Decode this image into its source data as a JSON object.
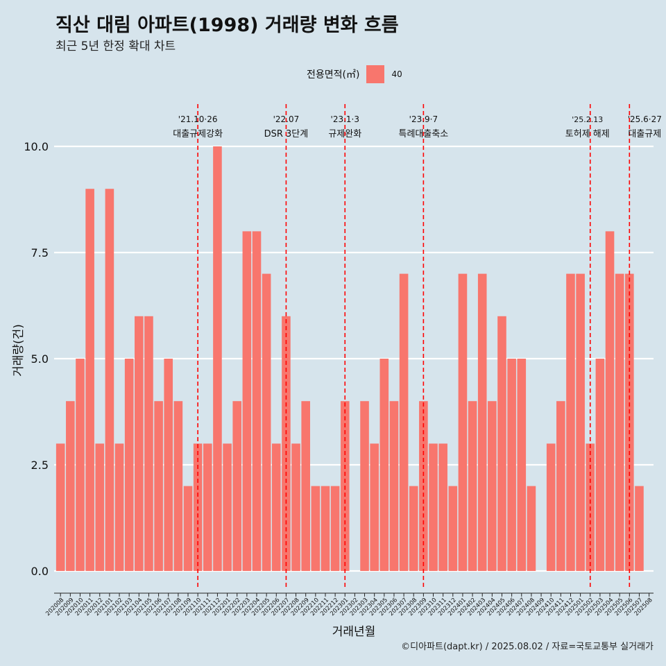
{
  "title": "직산 대림 아파트(1998) 거래량 변화 흐름",
  "subtitle": "최근 5년 한정 확대 차트",
  "caption": "©디아파트(dapt.kr) / 2025.08.02 / 자료=국토교통부 실거래가",
  "colors": {
    "background": "#d6e4ec",
    "bar": "#f8766d",
    "event_line": "#ff0000",
    "grid": "#ffffff"
  },
  "legend": {
    "title": "전용면적(㎡)",
    "label": "40"
  },
  "chart_data": {
    "type": "bar",
    "xlabel": "거래년월",
    "ylabel": "거래량(건)",
    "ylim": [
      0,
      10
    ],
    "y_ticks": [
      0.0,
      2.5,
      5.0,
      7.5,
      10.0
    ],
    "y_tick_labels": [
      "0.0",
      "2.5",
      "5.0",
      "7.5",
      "10.0"
    ],
    "grid": true,
    "legend_position": "top",
    "categories": [
      "202008",
      "202009",
      "202010",
      "202011",
      "202012",
      "202101",
      "202102",
      "202103",
      "202104",
      "202105",
      "202106",
      "202107",
      "202108",
      "202109",
      "202110",
      "202111",
      "202112",
      "202201",
      "202202",
      "202203",
      "202204",
      "202205",
      "202206",
      "202207",
      "202208",
      "202209",
      "202210",
      "202211",
      "202212",
      "202301",
      "202302",
      "202303",
      "202304",
      "202305",
      "202306",
      "202307",
      "202308",
      "202309",
      "202310",
      "202311",
      "202312",
      "202401",
      "202402",
      "202403",
      "202404",
      "202405",
      "202406",
      "202407",
      "202408",
      "202409",
      "202410",
      "202411",
      "202412",
      "202501",
      "202502",
      "202503",
      "202504",
      "202505",
      "202506",
      "202507",
      "202508"
    ],
    "series": [
      {
        "name": "40",
        "values": [
          3,
          4,
          5,
          9,
          3,
          9,
          3,
          5,
          6,
          6,
          4,
          5,
          4,
          2,
          3,
          3,
          10,
          3,
          4,
          8,
          8,
          7,
          3,
          6,
          3,
          4,
          2,
          2,
          2,
          4,
          0,
          4,
          3,
          5,
          4,
          7,
          2,
          4,
          3,
          3,
          2,
          7,
          4,
          7,
          4,
          6,
          5,
          5,
          2,
          0,
          3,
          4,
          7,
          7,
          3,
          5,
          8,
          7,
          7,
          2,
          0
        ]
      }
    ],
    "annotations": [
      {
        "category": "202110",
        "date": "'21.10·26",
        "label": "대출규제강화"
      },
      {
        "category": "202207",
        "date": "'22.07",
        "label": "DSR 3단계"
      },
      {
        "category": "202301",
        "date": "'23.1·3",
        "label": "규제완화"
      },
      {
        "category": "202309",
        "date": "'23.9·7",
        "label": "특례대출축소"
      },
      {
        "category": "202502",
        "date": "'25.2.13",
        "label": "토허제 해제"
      },
      {
        "category": "202506",
        "date": "'25.6·27",
        "label": "대출규제"
      }
    ]
  }
}
